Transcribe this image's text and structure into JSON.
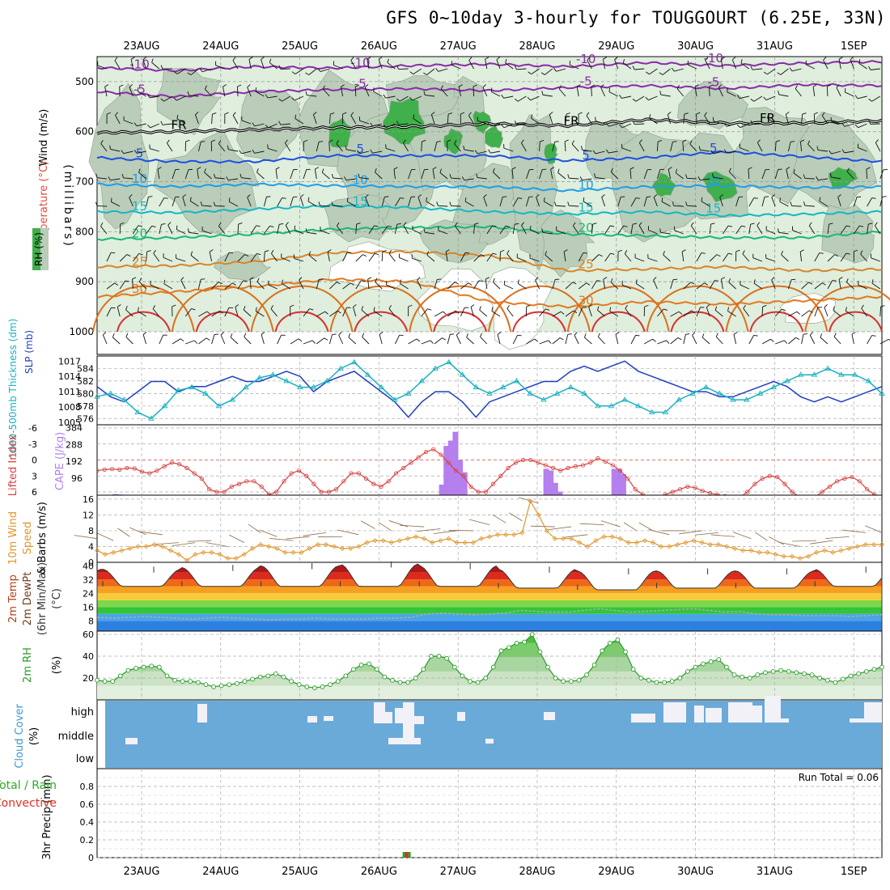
{
  "title": "GFS 0~10day 3-hourly for TOUGGOURT (6.25E, 33N)",
  "dates": [
    "23AUG",
    "24AUG",
    "25AUG",
    "26AUG",
    "27AUG",
    "28AUG",
    "29AUG",
    "30AUG",
    "31AUG",
    "1SEP"
  ],
  "chart_data": [
    {
      "type": "heatmap",
      "panel": "upper-air",
      "ylabel": "(millibars)",
      "side_labels": [
        "Wind (m/s)",
        "Temperature (°C)",
        "RH (%)"
      ],
      "y_ticks": [
        500,
        600,
        700,
        800,
        900,
        1000
      ],
      "ylim": [
        1000,
        450
      ],
      "rh_legend_colors": [
        "#dfeedd",
        "#b9cdb9",
        "#3fb04a"
      ],
      "temperature_isotherms": [
        {
          "label": "-10",
          "color": "#8b2aa8",
          "levels_mb": [
            472,
            478,
            470,
            473,
            468,
            465,
            470,
            462,
            468,
            463,
            460
          ]
        },
        {
          "label": "-5",
          "color": "#8b2aa8",
          "levels_mb": [
            520,
            530,
            520,
            516,
            514,
            518,
            512,
            508,
            514,
            506,
            508
          ]
        },
        {
          "label": "FR",
          "color": "#000000",
          "levels_mb": [
            602,
            600,
            596,
            592,
            590,
            584,
            588,
            576,
            583,
            583,
            578
          ]
        },
        {
          "label": "5",
          "color": "#1d4fe0",
          "levels_mb": [
            652,
            660,
            660,
            648,
            648,
            648,
            658,
            652,
            640,
            650,
            660
          ]
        },
        {
          "label": "10",
          "color": "#1e9ee8",
          "levels_mb": [
            705,
            710,
            705,
            708,
            710,
            710,
            718,
            710,
            708,
            712,
            710
          ]
        },
        {
          "label": "15",
          "color": "#15b7c2",
          "levels_mb": [
            760,
            762,
            755,
            748,
            752,
            760,
            765,
            760,
            768,
            765,
            760
          ]
        },
        {
          "label": "20",
          "color": "#1ab874",
          "levels_mb": [
            815,
            812,
            805,
            795,
            792,
            790,
            805,
            808,
            812,
            812,
            800
          ]
        },
        {
          "label": "25",
          "color": "#d7852a",
          "levels_mb": [
            870,
            868,
            860,
            842,
            840,
            848,
            878,
            875,
            870,
            878,
            875
          ]
        },
        {
          "label": "30",
          "color": "#e07a20",
          "levels_mb": [
            930,
            920,
            910,
            895,
            900,
            940,
            950,
            940,
            945,
            938,
            930
          ]
        }
      ],
      "contour_labels": [
        "-10",
        "-5",
        "FR",
        "5",
        "10",
        "15",
        "20",
        "25",
        "30",
        "50",
        "30"
      ]
    },
    {
      "type": "line",
      "panel": "thickness-slp",
      "ylabel_left": "1000-500mb Thickness (dm)",
      "ylabel_right": "SLP (mb)",
      "left_ticks": [
        576,
        578,
        580,
        582,
        584
      ],
      "right_ticks": [
        1005,
        1008,
        1011,
        1014,
        1017
      ],
      "series": [
        {
          "name": "SLP",
          "color": "#1f3fbf",
          "values": [
            1012,
            1010,
            1009,
            1011,
            1013,
            1013,
            1011,
            1012,
            1012,
            1013,
            1014,
            1013,
            1013,
            1014,
            1015,
            1014,
            1011,
            1013,
            1014,
            1015,
            1013,
            1011,
            1009,
            1006,
            1009,
            1011,
            1011,
            1009,
            1006,
            1009,
            1010,
            1011,
            1012,
            1013,
            1013,
            1015,
            1016,
            1015,
            1016,
            1017,
            1015,
            1014,
            1013,
            1012,
            1011,
            1011,
            1010,
            1010,
            1011,
            1012,
            1013,
            1012,
            1010,
            1009,
            1010,
            1009,
            1010,
            1011,
            1012
          ]
        },
        {
          "name": "Thickness",
          "color": "#1ab0c0",
          "values": [
            579.5,
            580,
            579,
            577,
            576,
            578,
            580.5,
            581,
            580,
            578,
            579,
            581,
            582.5,
            583,
            582,
            581,
            581,
            582,
            584,
            585,
            583,
            581,
            579,
            580,
            582,
            584,
            585,
            583,
            581,
            580,
            581,
            582,
            580,
            579,
            580,
            581,
            580,
            578,
            578,
            579,
            578,
            577,
            577,
            579,
            580,
            581,
            580,
            579,
            579,
            580,
            581,
            582,
            583,
            583,
            584,
            583,
            583,
            582,
            580
          ]
        }
      ]
    },
    {
      "type": "bar",
      "panel": "cape-li",
      "ylabel_left": "Lifted Index",
      "ylabel_right": "CAPE (J/kg)",
      "left_ticks": [
        "-6",
        "-3",
        "0",
        "3",
        "6"
      ],
      "right_ticks": [
        96,
        192,
        288,
        384
      ],
      "cape_color": "#b57fee",
      "li_color": "#d94040",
      "cape_values": [
        0,
        0,
        0,
        0,
        6,
        4,
        0,
        0,
        0,
        0,
        0,
        0,
        0,
        0,
        0,
        0,
        0,
        0,
        0,
        0,
        0,
        0,
        0,
        0,
        0,
        0,
        0,
        0,
        0,
        0,
        0,
        0,
        0,
        0,
        0,
        0,
        0,
        0,
        0,
        0,
        0,
        0,
        0,
        0,
        0,
        0,
        0,
        0,
        0,
        0,
        0,
        0,
        0,
        0,
        0,
        0,
        0,
        0,
        0,
        0,
        0,
        0,
        0,
        0,
        0,
        0,
        0,
        0,
        0,
        0,
        0,
        0,
        0,
        0,
        0,
        0,
        60,
        280,
        310,
        360,
        200,
        130,
        0,
        0,
        0,
        0,
        0,
        0,
        0,
        0,
        0,
        0,
        0,
        0,
        0,
        0,
        0,
        0,
        0,
        150,
        140,
        70,
        20,
        0,
        0,
        0,
        0,
        0,
        0,
        0,
        0,
        0,
        0,
        0,
        150,
        150,
        120,
        0,
        0,
        0,
        0,
        0,
        0,
        0,
        0,
        0,
        0,
        0,
        0,
        0,
        0,
        0,
        0,
        0,
        0,
        0,
        0,
        0,
        0,
        0,
        0,
        0,
        0,
        0,
        0,
        0,
        0,
        0,
        0,
        0,
        0,
        0,
        0,
        0,
        0,
        0,
        0,
        0,
        0,
        0,
        0,
        0,
        0,
        0,
        0,
        0,
        0,
        0,
        0,
        0,
        0,
        0,
        0,
        0
      ],
      "li_values": [
        2,
        1.8,
        1.7,
        1.8,
        1.5,
        1.6,
        2.2,
        2.5,
        2,
        1.2,
        0.5,
        0.8,
        1.5,
        2.5,
        3.5,
        5.5,
        6,
        6,
        5,
        4.5,
        4,
        4,
        5,
        6.5,
        6,
        4,
        2.5,
        2,
        3,
        4.5,
        6,
        6,
        5.5,
        4,
        2.5,
        2.5,
        3.5,
        4.5,
        5,
        4,
        2.5,
        1.5,
        0.5,
        -0.5,
        -1.5,
        -2,
        -1,
        0.5,
        2,
        3,
        5,
        6,
        6,
        4.5,
        3,
        1.5,
        0.5,
        0,
        0,
        0.5,
        1,
        1.5,
        2,
        1.5,
        1.2,
        1,
        0.5,
        -0.3,
        0.3,
        1,
        2,
        3.5,
        5.5,
        6.5,
        7,
        7,
        6.5,
        6,
        5.5,
        5,
        5.2,
        5.8,
        6.2,
        6.5,
        6.8,
        7,
        7,
        6,
        4.5,
        3.5,
        3,
        3.2,
        4.5,
        6,
        7,
        7,
        7,
        6,
        5,
        4,
        3.5,
        3.2,
        4,
        5.5,
        6.5,
        7
      ]
    },
    {
      "type": "line",
      "panel": "wind10m",
      "ylabel": "10m Wind Speed & Barbs (m/s)",
      "y_ticks": [
        0,
        4,
        8,
        12,
        16
      ],
      "ylim": [
        0,
        16
      ],
      "series": [
        {
          "name": "Speed",
          "color": "#e0962a",
          "values": [
            3,
            2,
            2.5,
            3,
            3.5,
            4,
            4,
            4.5,
            4,
            3,
            2,
            0.5,
            2,
            2.5,
            2.5,
            2,
            1,
            1,
            2,
            3.5,
            4.5,
            4,
            3.5,
            2.5,
            2.5,
            2.5,
            3.5,
            4.5,
            4.5,
            4,
            3.5,
            3.5,
            4,
            5,
            5.5,
            5.5,
            5,
            5.5,
            6,
            6.5,
            6,
            5,
            5.5,
            6,
            5,
            5,
            5,
            6,
            6.5,
            7,
            7,
            7,
            7.5,
            15.5,
            12,
            8,
            6,
            6,
            6,
            5,
            4,
            5.5,
            6.5,
            6.5,
            6,
            5,
            5,
            5.5,
            5,
            4,
            4,
            4.5,
            5,
            5.5,
            5,
            4.5,
            4.5,
            4,
            3.5,
            3,
            3,
            2.5,
            2.5,
            2,
            1.5,
            1.5,
            1,
            1.5,
            2.5,
            3,
            2.5,
            3,
            3.5,
            4,
            4.5,
            4.5,
            4.5
          ]
        }
      ]
    },
    {
      "type": "area",
      "panel": "temp2m",
      "ylabel": "2m Temp 2m DewPt (6hr Min/Max) (°C)",
      "y_ticks": [
        8,
        16,
        24,
        32,
        40
      ],
      "ylim": [
        2,
        42
      ],
      "band_colors": [
        "#2d80e0",
        "#4aa4e8",
        "#33c43a",
        "#7ed84a",
        "#f6cc3a",
        "#f5a020",
        "#ee6818",
        "#dd2a1c",
        "#b01818",
        "#7a0f0f"
      ],
      "temperature_max_by_day": [
        38,
        39,
        40,
        41,
        40,
        38,
        37,
        37,
        37,
        38
      ],
      "temperature_min_by_day": [
        28,
        28,
        28,
        28,
        28,
        27,
        26,
        27,
        27,
        28
      ],
      "dewpoint": [
        10,
        9.5,
        10,
        10.5,
        10,
        9.5,
        9,
        9.5,
        10,
        9.5,
        9,
        8.5,
        9,
        9,
        9.5,
        9,
        9,
        9,
        9.5,
        9.5,
        10,
        12,
        12.5,
        12,
        11.5,
        12,
        12.5,
        14,
        13.5,
        13,
        13,
        14,
        15,
        14,
        13,
        13.5,
        14,
        14.5,
        15,
        14,
        13,
        13.5,
        12,
        11.5,
        11.5,
        11,
        11,
        11,
        10.5,
        11,
        11.5
      ]
    },
    {
      "type": "area",
      "panel": "rh2m",
      "ylabel": "2m RH (%)",
      "y_ticks": [
        20,
        40,
        60
      ],
      "ylim": [
        0,
        63
      ],
      "series": [
        {
          "name": "2m RH",
          "color": "#2a9a2a",
          "values": [
            18,
            17,
            17,
            22,
            27,
            29,
            30,
            31,
            30,
            22,
            18,
            17,
            17,
            16,
            14,
            12,
            13,
            14,
            15,
            17,
            19,
            21,
            22,
            24,
            21,
            17,
            14,
            12,
            11,
            12,
            14,
            17,
            22,
            28,
            32,
            33,
            28,
            21,
            18,
            16,
            16,
            20,
            28,
            40,
            40,
            38,
            30,
            22,
            17,
            16,
            20,
            30,
            45,
            48,
            52,
            53,
            60,
            44,
            30,
            20,
            17,
            17,
            18,
            23,
            32,
            45,
            52,
            55,
            44,
            28,
            20,
            18,
            16,
            16,
            17,
            20,
            26,
            30,
            33,
            35,
            37,
            30,
            23,
            21,
            20,
            23,
            25,
            26,
            27,
            26,
            25,
            24,
            23,
            20,
            18,
            16,
            19,
            22,
            24,
            26,
            28,
            30
          ]
        }
      ]
    },
    {
      "type": "heatmap",
      "panel": "cloud",
      "ylabel": "Cloud Cover (%)",
      "rows": [
        "high",
        "middle",
        "low"
      ],
      "background_color": "#6aaad8",
      "cloud_color": "#f3f1f8"
    },
    {
      "type": "bar",
      "panel": "precip",
      "ylabel": "3hr Precip (mm)",
      "legend": [
        "Total / Rain",
        "Convective"
      ],
      "legend_colors": [
        "#2aa82a",
        "#e03020"
      ],
      "y_ticks": [
        "0",
        "0.2",
        "0.4",
        "0.6",
        "0.8"
      ],
      "ylim": [
        0,
        1
      ],
      "run_total_label": "Run Total = 0.06",
      "values": [
        {
          "day_index": 3.35,
          "total": 0.06,
          "convective": 0.06
        }
      ]
    }
  ]
}
